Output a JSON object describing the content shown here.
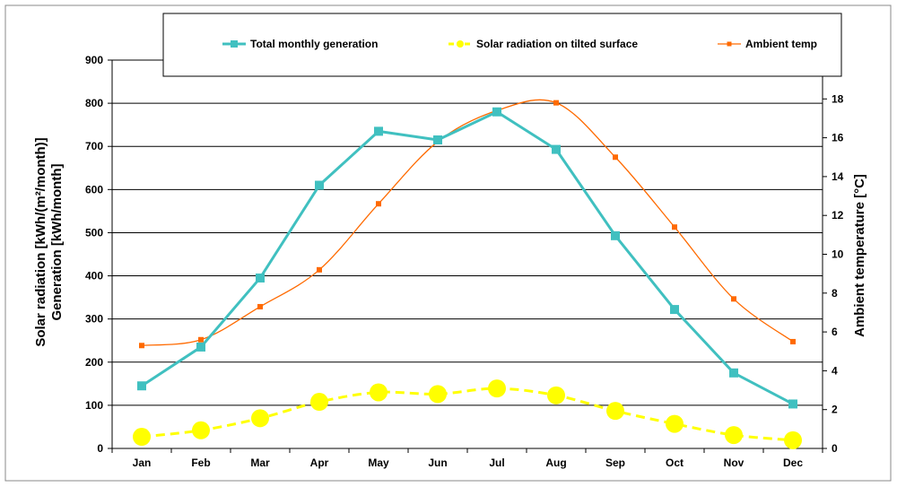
{
  "chart_data": {
    "type": "line",
    "categories": [
      "Jan",
      "Feb",
      "Mar",
      "Apr",
      "May",
      "Jun",
      "Jul",
      "Aug",
      "Sep",
      "Oct",
      "Nov",
      "Dec"
    ],
    "y_left": {
      "label_lines": [
        "Solar radiation [kWh/(m²/month)]",
        "Generation [kWh/month]"
      ],
      "ylim": [
        0,
        900
      ],
      "ticks": [
        0,
        100,
        200,
        300,
        400,
        500,
        600,
        700,
        800,
        900
      ]
    },
    "y_right": {
      "label": "Ambient temperature [°C]",
      "ylim": [
        0,
        20
      ],
      "ticks": [
        0,
        2,
        4,
        6,
        8,
        10,
        12,
        14,
        16,
        18
      ]
    },
    "grid": true,
    "legend_position": "top",
    "series": [
      {
        "name": "Total monthly generation",
        "axis": "left",
        "color": "#40C0C0",
        "marker": "square",
        "smooth": false,
        "dashed": false,
        "values": [
          145,
          235,
          395,
          610,
          735,
          715,
          780,
          693,
          493,
          322,
          175,
          103
        ]
      },
      {
        "name": "Solar radiation on tilted surface",
        "axis": "left",
        "color": "#FFFF00",
        "marker": "circle",
        "smooth": true,
        "dashed": true,
        "values": [
          27,
          42,
          70,
          108,
          130,
          126,
          139,
          123,
          87,
          57,
          31,
          19
        ]
      },
      {
        "name": "Ambient temp",
        "axis": "right",
        "color": "#FF6A00",
        "marker": "small-square",
        "smooth": true,
        "dashed": false,
        "values": [
          5.3,
          5.6,
          7.3,
          9.2,
          12.6,
          15.8,
          17.4,
          17.8,
          15.0,
          11.4,
          7.7,
          5.5
        ]
      }
    ]
  }
}
